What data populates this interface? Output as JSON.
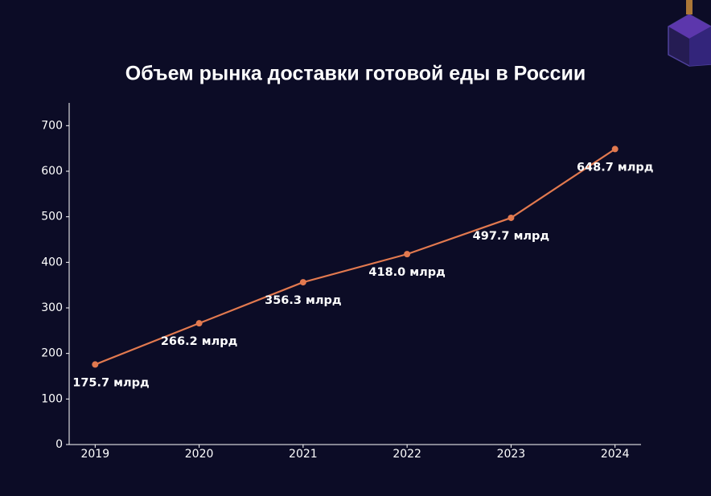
{
  "chart_data": {
    "type": "line",
    "title": "Объем рынка доставки готовой еды в России",
    "categories": [
      "2019",
      "2020",
      "2021",
      "2022",
      "2023",
      "2024"
    ],
    "series": [
      {
        "name": "Объем рынка",
        "color": "#e2794f",
        "values": [
          175.7,
          266.2,
          356.3,
          418.0,
          497.7,
          648.7
        ],
        "value_labels": [
          "175.7 млрд",
          "266.2 млрд",
          "356.3 млрд",
          "418.0 млрд",
          "497.7 млрд",
          "648.7 млрд"
        ]
      }
    ],
    "ylim": [
      0,
      750
    ],
    "yticks": [
      0,
      100,
      200,
      300,
      400,
      500,
      600,
      700
    ],
    "grid": false
  }
}
